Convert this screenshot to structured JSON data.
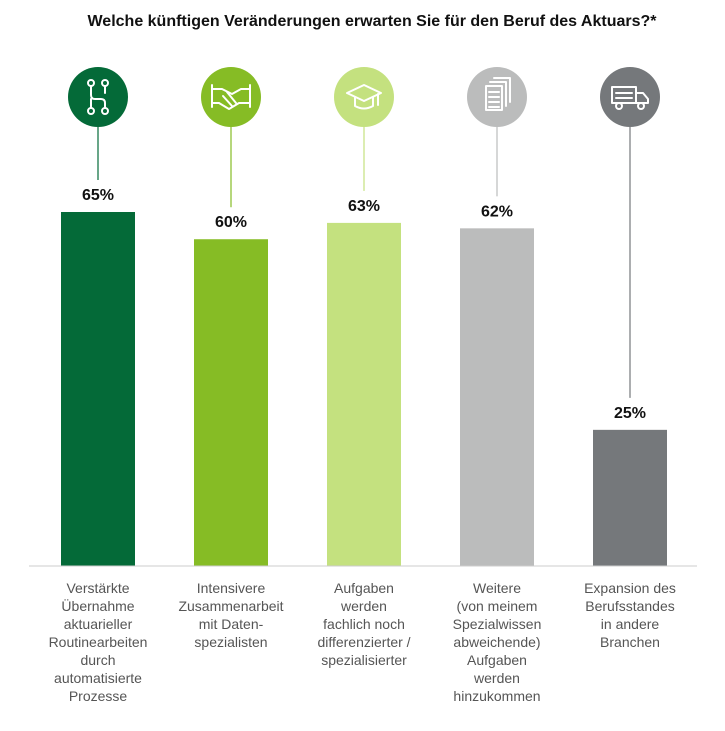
{
  "chart_data": {
    "type": "bar",
    "title": "Welche künftigen Veränderungen erwarten Sie für den Beruf des Aktuars?*",
    "xlabel": "",
    "ylabel": "",
    "ylim": [
      0,
      65
    ],
    "grid": false,
    "legend": "none",
    "categories": [
      "Verstärkte Übernahme aktuarieller Routinearbeiten durch automatisierte Prozesse",
      "Intensivere Zusammenarbeit mit Datenspezialisten",
      "Aufgaben werden fachlich noch differenzierter / spezialisierter",
      "Weitere (von meinem Spezialwissen abweichende) Aufgaben werden hinzukommen",
      "Expansion des Berufsstandes in andere Branchen"
    ],
    "category_lines": [
      [
        "Verstärkte",
        "Übernahme",
        "aktuarieller",
        "Routinearbeiten",
        "durch",
        "automatisierte",
        "Prozesse"
      ],
      [
        "Intensivere",
        "Zusammenarbeit",
        "mit Daten-",
        "spezialisten"
      ],
      [
        "Aufgaben",
        "werden",
        "fachlich noch",
        "differenzierter /",
        "spezialisierter"
      ],
      [
        "Weitere",
        "(von meinem",
        "Spezialwissen",
        "abweichende)",
        "Aufgaben",
        "werden",
        "hinzukommen"
      ],
      [
        "Expansion des",
        "Berufsstandes",
        "in andere",
        "Branchen"
      ]
    ],
    "values": [
      65,
      60,
      63,
      62,
      25
    ],
    "value_labels": [
      "65%",
      "60%",
      "63%",
      "62%",
      "25%"
    ],
    "unit": "%",
    "colors": [
      "#046a38",
      "#86bc25",
      "#c4e17f",
      "#bbbcbc",
      "#75787b"
    ],
    "icons": [
      "circuit-icon",
      "handshake-icon",
      "graduation-cap-icon",
      "documents-icon",
      "truck-icon"
    ]
  }
}
